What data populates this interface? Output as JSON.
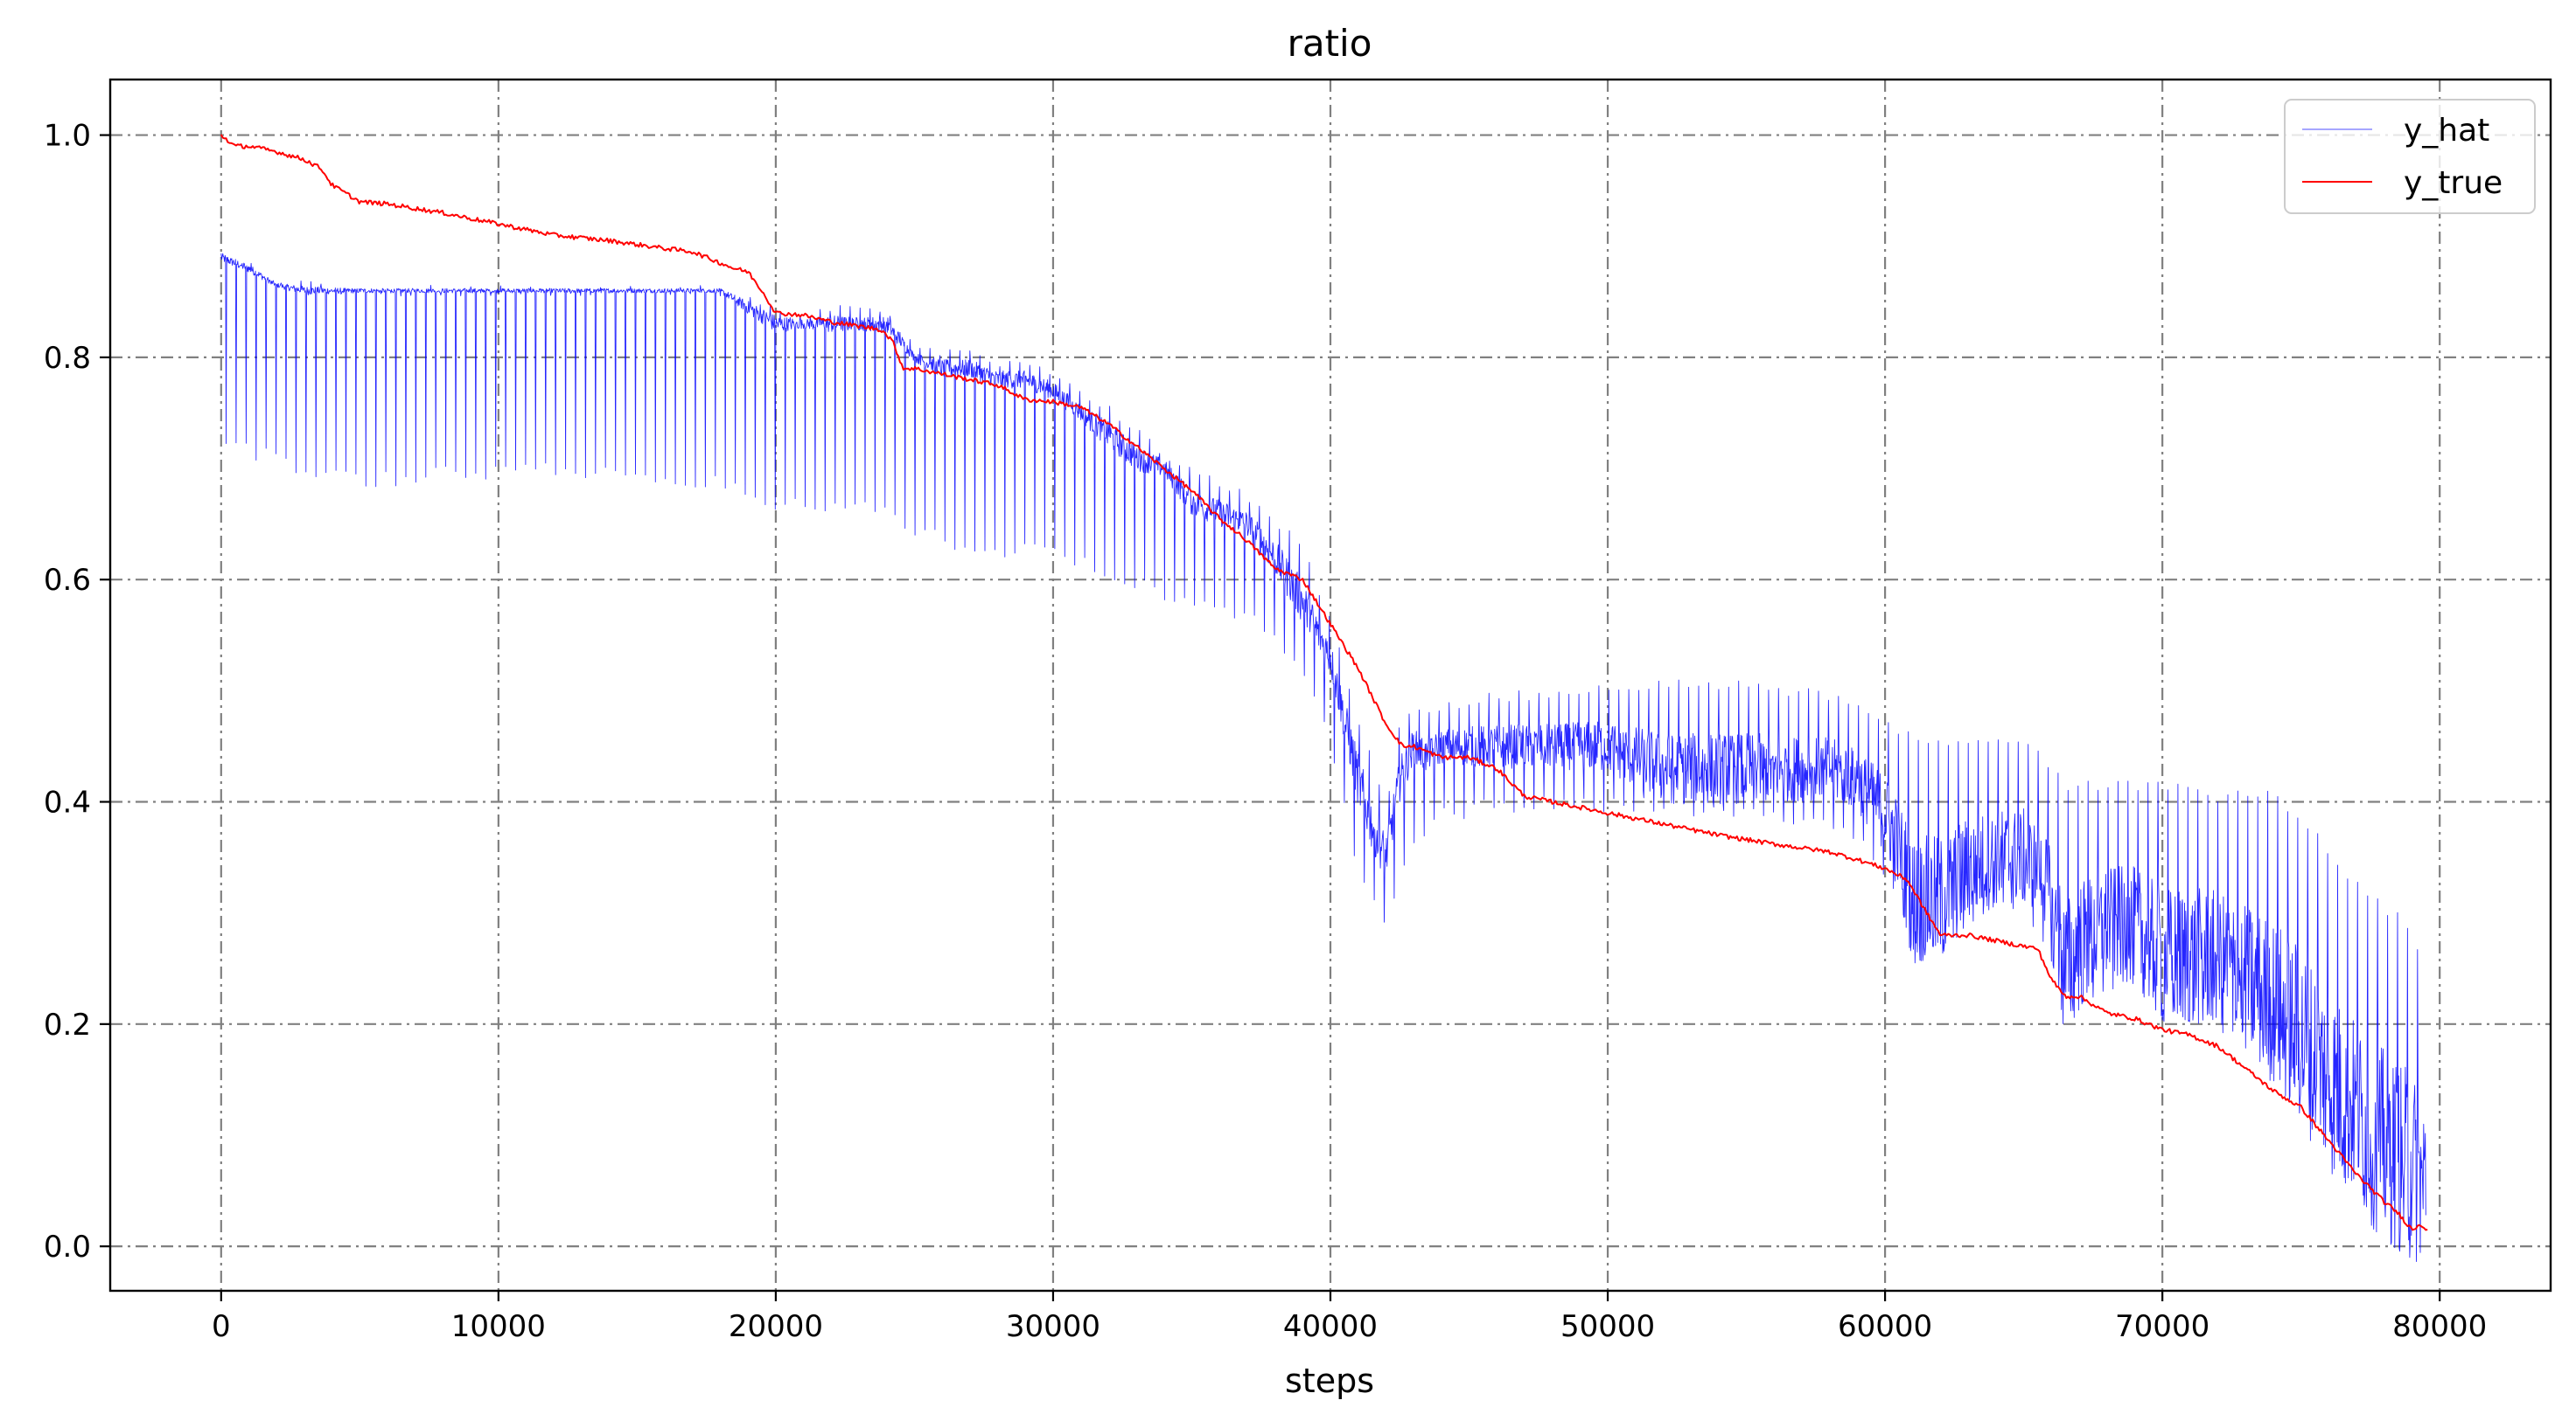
{
  "chart_data": {
    "type": "line",
    "title": "ratio",
    "xlabel": "steps",
    "ylabel": "",
    "xlim": [
      -4000,
      84000
    ],
    "ylim": [
      -0.04,
      1.05
    ],
    "xticks": [
      0,
      10000,
      20000,
      30000,
      40000,
      50000,
      60000,
      70000,
      80000
    ],
    "xtick_labels": [
      "0",
      "10000",
      "20000",
      "30000",
      "40000",
      "50000",
      "60000",
      "70000",
      "80000"
    ],
    "yticks": [
      0.0,
      0.2,
      0.4,
      0.6,
      0.8,
      1.0
    ],
    "ytick_labels": [
      "0.0",
      "0.2",
      "0.4",
      "0.6",
      "0.8",
      "1.0"
    ],
    "grid": true,
    "legend_position": "top-right",
    "series": [
      {
        "name": "y_hat",
        "color": "#0000ff",
        "style": "oscillating",
        "x": [
          0,
          1000,
          2000,
          3000,
          5000,
          8000,
          10000,
          12000,
          15000,
          18000,
          19000,
          20000,
          21000,
          22000,
          23000,
          24000,
          25000,
          26000,
          27000,
          28000,
          29000,
          30000,
          31000,
          32000,
          33000,
          34000,
          35000,
          36000,
          37000,
          38000,
          39000,
          40000,
          41000,
          41500,
          42000,
          42500,
          43000,
          43500,
          44000,
          46000,
          48000,
          50000,
          52000,
          55000,
          58000,
          59000,
          60000,
          60500,
          61000,
          62000,
          63000,
          64000,
          65000,
          65800,
          66500,
          67000,
          68000,
          69000,
          70000,
          71000,
          72000,
          73000,
          74000,
          75000,
          76000,
          77000,
          78000,
          79000,
          79500
        ],
        "upper": [
          0.9,
          0.89,
          0.87,
          0.87,
          0.865,
          0.865,
          0.865,
          0.865,
          0.865,
          0.865,
          0.86,
          0.85,
          0.84,
          0.85,
          0.845,
          0.85,
          0.81,
          0.81,
          0.81,
          0.8,
          0.8,
          0.79,
          0.77,
          0.76,
          0.74,
          0.72,
          0.7,
          0.69,
          0.68,
          0.66,
          0.63,
          0.57,
          0.48,
          0.44,
          0.4,
          0.47,
          0.49,
          0.48,
          0.49,
          0.5,
          0.5,
          0.51,
          0.51,
          0.51,
          0.5,
          0.49,
          0.48,
          0.47,
          0.46,
          0.46,
          0.46,
          0.46,
          0.46,
          0.44,
          0.42,
          0.42,
          0.42,
          0.42,
          0.42,
          0.42,
          0.41,
          0.41,
          0.41,
          0.39,
          0.36,
          0.33,
          0.31,
          0.29,
          0.25
        ],
        "center": [
          0.89,
          0.88,
          0.865,
          0.86,
          0.86,
          0.86,
          0.86,
          0.86,
          0.86,
          0.86,
          0.845,
          0.83,
          0.83,
          0.83,
          0.83,
          0.83,
          0.8,
          0.79,
          0.79,
          0.78,
          0.78,
          0.77,
          0.75,
          0.73,
          0.71,
          0.7,
          0.67,
          0.66,
          0.65,
          0.62,
          0.58,
          0.53,
          0.42,
          0.38,
          0.35,
          0.42,
          0.45,
          0.44,
          0.45,
          0.45,
          0.45,
          0.45,
          0.43,
          0.43,
          0.43,
          0.42,
          0.39,
          0.36,
          0.31,
          0.31,
          0.34,
          0.35,
          0.35,
          0.33,
          0.25,
          0.27,
          0.29,
          0.29,
          0.26,
          0.26,
          0.26,
          0.24,
          0.22,
          0.19,
          0.15,
          0.12,
          0.09,
          0.07,
          0.06
        ],
        "lower": [
          0.71,
          0.71,
          0.7,
          0.69,
          0.68,
          0.69,
          0.69,
          0.69,
          0.69,
          0.68,
          0.67,
          0.66,
          0.66,
          0.66,
          0.66,
          0.65,
          0.64,
          0.63,
          0.62,
          0.62,
          0.62,
          0.62,
          0.61,
          0.6,
          0.59,
          0.58,
          0.575,
          0.57,
          0.56,
          0.54,
          0.51,
          0.45,
          0.33,
          0.3,
          0.28,
          0.33,
          0.36,
          0.37,
          0.38,
          0.39,
          0.39,
          0.39,
          0.39,
          0.38,
          0.37,
          0.36,
          0.33,
          0.3,
          0.26,
          0.27,
          0.28,
          0.3,
          0.3,
          0.27,
          0.19,
          0.21,
          0.23,
          0.23,
          0.2,
          0.2,
          0.19,
          0.18,
          0.17,
          0.14,
          0.11,
          0.08,
          0.06,
          0.05,
          0.05
        ]
      },
      {
        "name": "y_true",
        "color": "#ff0000",
        "style": "line",
        "x": [
          0,
          500,
          1000,
          2000,
          3000,
          3600,
          4000,
          5000,
          6000,
          8000,
          10000,
          12000,
          14000,
          16000,
          17000,
          18000,
          18500,
          19000,
          19500,
          20000,
          21000,
          22000,
          23000,
          23800,
          24200,
          24600,
          25000,
          26000,
          27000,
          28000,
          29000,
          30000,
          31000,
          32000,
          33000,
          34000,
          35000,
          36000,
          37000,
          38000,
          39000,
          40000,
          41000,
          42000,
          42600,
          43000,
          44000,
          45000,
          46000,
          47000,
          48000,
          50000,
          52000,
          54000,
          56000,
          58000,
          59000,
          60000,
          60800,
          61500,
          62000,
          63000,
          64000,
          65000,
          65500,
          66000,
          66500,
          67000,
          68000,
          69000,
          70000,
          71000,
          72000,
          73000,
          74000,
          75000,
          76000,
          77000,
          78000,
          78500,
          79000,
          79300,
          79600
        ],
        "y": [
          1.0,
          0.99,
          0.99,
          0.985,
          0.978,
          0.97,
          0.955,
          0.94,
          0.938,
          0.93,
          0.92,
          0.91,
          0.905,
          0.898,
          0.895,
          0.885,
          0.88,
          0.877,
          0.86,
          0.84,
          0.838,
          0.832,
          0.828,
          0.825,
          0.815,
          0.79,
          0.79,
          0.785,
          0.78,
          0.775,
          0.762,
          0.76,
          0.755,
          0.74,
          0.72,
          0.7,
          0.68,
          0.655,
          0.635,
          0.61,
          0.6,
          0.56,
          0.52,
          0.47,
          0.45,
          0.45,
          0.44,
          0.44,
          0.43,
          0.405,
          0.4,
          0.39,
          0.38,
          0.37,
          0.362,
          0.355,
          0.348,
          0.34,
          0.33,
          0.3,
          0.28,
          0.28,
          0.275,
          0.27,
          0.268,
          0.24,
          0.225,
          0.225,
          0.21,
          0.205,
          0.195,
          0.19,
          0.18,
          0.16,
          0.14,
          0.125,
          0.095,
          0.065,
          0.04,
          0.03,
          0.015,
          0.02,
          0.015
        ]
      }
    ]
  }
}
